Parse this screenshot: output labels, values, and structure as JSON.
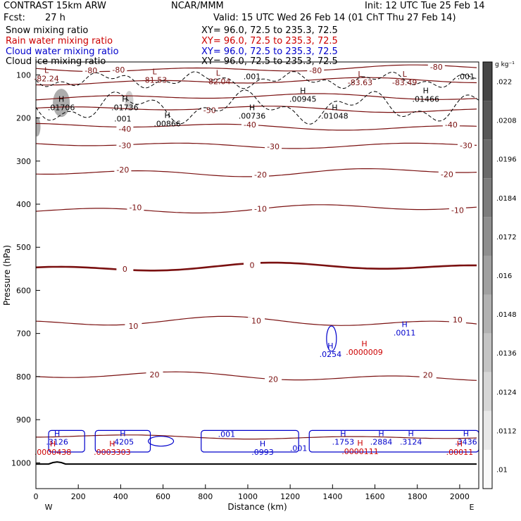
{
  "header": {
    "model": "CONTRAST 15km ARW",
    "org": "NCAR/MMM",
    "init": "Init: 12 UTC Tue 25 Feb 14",
    "fcst_label": "Fcst:",
    "fcst_value": "27 h",
    "valid": "Valid: 15 UTC Wed 26 Feb 14 (01 ChT Thu 27 Feb 14)"
  },
  "fields": [
    {
      "name": "Snow mixing ratio",
      "color": "#000000",
      "xy": "XY=  96.0, 72.5 to 235.3, 72.5"
    },
    {
      "name": "Rain water mixing ratio",
      "color": "#cc0000",
      "xy": "XY=  96.0, 72.5 to 235.3, 72.5"
    },
    {
      "name": "Cloud water mixing ratio",
      "color": "#0000cc",
      "xy": "XY=  96.0, 72.5 to 235.3, 72.5"
    },
    {
      "name": "Cloud ice mixing ratio",
      "color": "#000000",
      "xy": "XY=  96.0, 72.5 to 235.3, 72.5"
    }
  ],
  "colors": {
    "temperature": "#7a1010",
    "rain": "#cc0000",
    "cloud": "#0000cc",
    "ice": "#000000"
  },
  "chart_data": {
    "type": "contour",
    "xlabel": "Distance (km)",
    "ylabel": "Pressure (hPa)",
    "xlim": [
      0,
      2090
    ],
    "ylim": [
      1060,
      70
    ],
    "xticks": [
      0,
      200,
      400,
      600,
      800,
      1000,
      1200,
      1400,
      1600,
      1800,
      2000
    ],
    "yticks": [
      100,
      200,
      300,
      400,
      500,
      600,
      700,
      800,
      900,
      1000
    ],
    "direction_labels": [
      {
        "x": 100,
        "text": "W"
      },
      {
        "x": 2030,
        "text": "E"
      }
    ],
    "temperature_contours": [
      {
        "level": -80,
        "p": 85,
        "labels": [
          {
            "x": 390,
            "text": "-80"
          },
          {
            "x": 1320,
            "text": "-80"
          },
          {
            "x": 260,
            "text": "-80"
          },
          {
            "x": 1890,
            "text": "-80"
          }
        ],
        "wave": 3
      },
      {
        "level": -70,
        "p": 115,
        "labels": [],
        "wave": 3
      },
      {
        "level": -60,
        "p": 152,
        "labels": [],
        "wave": 3
      },
      {
        "level": -50,
        "p": 180,
        "labels": [
          {
            "x": 820,
            "text": "-50"
          }
        ],
        "wave": 3
      },
      {
        "level": -40,
        "p": 220,
        "labels": [
          {
            "x": 420,
            "text": "-40"
          },
          {
            "x": 1010,
            "text": "-40"
          },
          {
            "x": 1960,
            "text": "-40"
          }
        ],
        "wave": 3
      },
      {
        "level": -30,
        "p": 262,
        "labels": [
          {
            "x": 420,
            "text": "-30"
          },
          {
            "x": 1120,
            "text": "-30"
          },
          {
            "x": 2030,
            "text": "-30"
          }
        ],
        "wave": 3
      },
      {
        "level": -20,
        "p": 325,
        "labels": [
          {
            "x": 410,
            "text": "-20"
          },
          {
            "x": 1060,
            "text": "-20"
          },
          {
            "x": 1940,
            "text": "-20"
          }
        ],
        "wave": 4
      },
      {
        "level": -10,
        "p": 411,
        "labels": [
          {
            "x": 470,
            "text": "-10"
          },
          {
            "x": 1060,
            "text": "-10"
          },
          {
            "x": 1990,
            "text": "-10"
          }
        ],
        "wave": 4
      },
      {
        "level": 0,
        "p": 547,
        "labels": [
          {
            "x": 420,
            "text": "0"
          },
          {
            "x": 1020,
            "text": "0"
          }
        ],
        "wave": 4,
        "bold": true
      },
      {
        "level": 10,
        "p": 675,
        "labels": [
          {
            "x": 460,
            "text": "10"
          },
          {
            "x": 1040,
            "text": "10"
          },
          {
            "x": 1990,
            "text": "10"
          }
        ],
        "wave": 5
      },
      {
        "level": 20,
        "p": 800,
        "labels": [
          {
            "x": 560,
            "text": "20"
          },
          {
            "x": 1120,
            "text": "20"
          },
          {
            "x": 1850,
            "text": "20"
          }
        ],
        "wave": 4
      },
      {
        "level": 30,
        "p": 940,
        "labels": [],
        "wave": 2
      }
    ],
    "rain_extrema": [
      {
        "kind": "H",
        "x": 80,
        "p": 962,
        "value": ".0000438"
      },
      {
        "kind": "H",
        "x": 360,
        "p": 962,
        "value": ".0003303"
      },
      {
        "kind": "H",
        "x": 1550,
        "p": 730,
        "value": ".0000009"
      },
      {
        "kind": "H",
        "x": 1530,
        "p": 960,
        "value": ".0000111"
      },
      {
        "kind": "H",
        "x": 2000,
        "p": 962,
        "value": ".00011"
      }
    ],
    "cloud_extrema": [
      {
        "kind": "H",
        "x": 100,
        "p": 938,
        "value": ".3126"
      },
      {
        "kind": "H",
        "x": 410,
        "p": 938,
        "value": ".4205"
      },
      {
        "kind": "H",
        "x": 1070,
        "p": 962,
        "value": ".0993"
      },
      {
        "kind": "H",
        "x": 1450,
        "p": 938,
        "value": ".1753"
      },
      {
        "kind": "H",
        "x": 1630,
        "p": 938,
        "value": ".2884"
      },
      {
        "kind": "H",
        "x": 1770,
        "p": 938,
        "value": ".3124"
      },
      {
        "kind": "H",
        "x": 2030,
        "p": 938,
        "value": ".3436"
      },
      {
        "kind": "H",
        "x": 1390,
        "p": 735,
        "value": ".0254"
      },
      {
        "kind": "H",
        "x": 1740,
        "p": 685,
        "value": ".0011"
      }
    ],
    "cloud_labels": [
      {
        "x": 900,
        "p": 940,
        "text": ".001"
      },
      {
        "x": 1240,
        "p": 973,
        "text": ".001"
      }
    ],
    "ice_extrema": [
      {
        "kind": "H",
        "x": 120,
        "p": 162,
        "value": ".01706"
      },
      {
        "kind": "H",
        "x": 420,
        "p": 162,
        "value": ".01736"
      },
      {
        "kind": "H",
        "x": 620,
        "p": 200,
        "value": ".00866"
      },
      {
        "kind": "H",
        "x": 1020,
        "p": 182,
        "value": ".00736"
      },
      {
        "kind": "H",
        "x": 1410,
        "p": 182,
        "value": ".01048"
      },
      {
        "kind": "H",
        "x": 1260,
        "p": 143,
        "value": ".00945"
      },
      {
        "kind": "H",
        "x": 1840,
        "p": 143,
        "value": ".01466"
      }
    ],
    "ice_labels": [
      {
        "x": 410,
        "p": 208,
        "text": ".001"
      },
      {
        "x": 1020,
        "p": 110,
        "text": ".001"
      },
      {
        "x": 2030,
        "p": 110,
        "text": ".001"
      }
    ],
    "temp_lows": [
      {
        "x": 50,
        "p": 108,
        "value": "-82.24"
      },
      {
        "x": 560,
        "p": 112,
        "value": "-81.53"
      },
      {
        "x": 860,
        "p": 115,
        "value": "-82.04"
      },
      {
        "x": 1530,
        "p": 117,
        "value": "-83.63"
      },
      {
        "x": 1740,
        "p": 117,
        "value": "-83.49"
      }
    ],
    "colorbar": {
      "unit": "g kg⁻¹",
      "ticks": [
        ".022",
        ".0208",
        ".0196",
        ".0184",
        ".0172",
        ".016",
        ".0148",
        ".0136",
        ".0124",
        ".0112",
        ".01"
      ]
    }
  }
}
